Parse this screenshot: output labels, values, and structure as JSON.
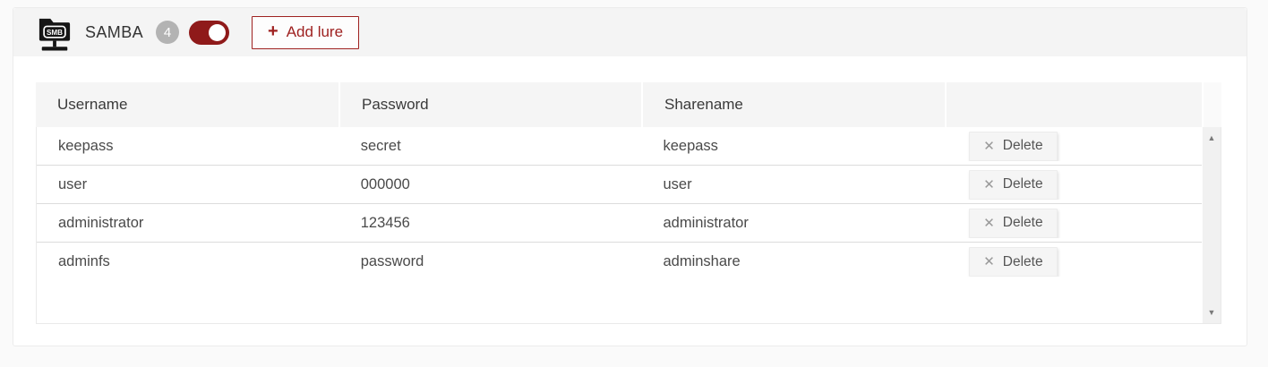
{
  "header": {
    "title": "SAMBA",
    "count_badge": "4",
    "toggle_state": "on",
    "add_button": {
      "icon_glyph": "+",
      "label": "Add lure"
    }
  },
  "colors": {
    "accent_red": "#9e2120",
    "toggle_red": "#8f1a1a",
    "badge_gray": "#b3b3b3",
    "header_strip_bg": "#f4f4f4",
    "table_header_bg": "#f5f5f5"
  },
  "table": {
    "columns": [
      "Username",
      "Password",
      "Sharename",
      ""
    ],
    "rows": [
      {
        "username": "keepass",
        "password": "secret",
        "sharename": "keepass"
      },
      {
        "username": "user",
        "password": "000000",
        "sharename": "user"
      },
      {
        "username": "administrator",
        "password": "123456",
        "sharename": "administrator"
      },
      {
        "username": "adminfs",
        "password": "password",
        "sharename": "adminshare"
      }
    ],
    "delete_button": {
      "icon_glyph": "✕",
      "label": "Delete"
    }
  },
  "scrollbar": {
    "up_glyph": "▲",
    "down_glyph": "▼"
  }
}
